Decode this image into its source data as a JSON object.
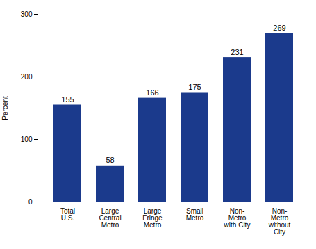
{
  "chart_data": {
    "type": "bar",
    "categories": [
      "Total\nU.S.",
      "Large\nCentral\nMetro",
      "Large\nFringe\nMetro",
      "Small\nMetro",
      "Non-\nMetro\nwith City",
      "Non-\nMetro\nwithout\nCity"
    ],
    "values": [
      155,
      58,
      166,
      175,
      231,
      269
    ],
    "color": "#1b3a8c",
    "ylabel": "Percent",
    "ylim": [
      0,
      300
    ],
    "yticks": [
      0,
      100,
      200,
      300
    ],
    "grid": false,
    "data_labels": true
  }
}
